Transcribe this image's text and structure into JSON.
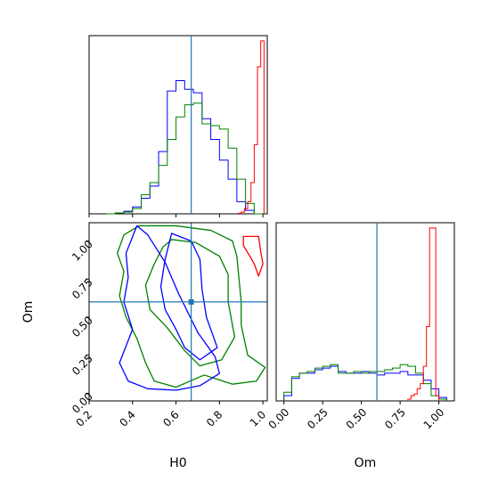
{
  "chart_data": [
    {
      "panel": "H0 marginal",
      "type": "histogram",
      "x_variable": "H0",
      "xlim": [
        0.2,
        1.02
      ],
      "truth": 0.67,
      "colors": {
        "blue": "#0000ff",
        "green": "#008000",
        "red": "#ff0000",
        "truth": "#1f77b4"
      },
      "series": [
        {
          "color": "blue",
          "edges": [
            0.28,
            0.32,
            0.36,
            0.4,
            0.44,
            0.48,
            0.52,
            0.56,
            0.6,
            0.64,
            0.68,
            0.72,
            0.76,
            0.8,
            0.84,
            0.88,
            0.92,
            0.96,
            1.0
          ],
          "values": [
            0,
            0.5,
            1.5,
            4,
            9,
            16,
            36,
            71,
            77,
            72,
            70,
            55,
            43,
            31,
            20,
            7,
            2,
            0
          ]
        },
        {
          "color": "green",
          "edges": [
            0.28,
            0.32,
            0.36,
            0.4,
            0.44,
            0.48,
            0.52,
            0.56,
            0.6,
            0.64,
            0.68,
            0.72,
            0.76,
            0.8,
            0.84,
            0.88,
            0.92,
            0.96,
            1.0
          ],
          "values": [
            0,
            0.5,
            1,
            3,
            11,
            18,
            28,
            43,
            56,
            63,
            64,
            52,
            51,
            49,
            38,
            20,
            6,
            0
          ]
        },
        {
          "color": "red",
          "edges": [
            0.885,
            0.9,
            0.915,
            0.93,
            0.945,
            0.96,
            0.975,
            0.99,
            1.005
          ],
          "values": [
            0.3,
            1,
            3,
            7,
            18,
            40,
            85,
            100
          ]
        }
      ]
    },
    {
      "panel": "Om vs H0 contours",
      "type": "contour",
      "xlabel": "H0",
      "ylabel": "Om",
      "xlim": [
        0.2,
        1.02
      ],
      "ylim": [
        -0.05,
        1.12
      ],
      "x_ticks": [
        "0.2",
        "0.4",
        "0.6",
        "0.8",
        "1.0"
      ],
      "y_ticks": [
        "0.00",
        "0.25",
        "0.50",
        "0.75",
        "1.00"
      ],
      "truth": {
        "H0": 0.67,
        "Om": 0.6
      },
      "contours": [
        {
          "color": "green",
          "points": [
            [
              0.43,
              1.1
            ],
            [
              0.6,
              1.1
            ],
            [
              0.76,
              1.07
            ],
            [
              0.86,
              1.0
            ],
            [
              0.88,
              0.9
            ],
            [
              0.89,
              0.75
            ],
            [
              0.9,
              0.6
            ],
            [
              0.9,
              0.45
            ],
            [
              0.93,
              0.25
            ],
            [
              1.01,
              0.17
            ],
            [
              0.97,
              0.08
            ],
            [
              0.86,
              0.06
            ],
            [
              0.73,
              0.12
            ],
            [
              0.68,
              0.09
            ],
            [
              0.6,
              0.04
            ],
            [
              0.5,
              0.08
            ],
            [
              0.46,
              0.2
            ],
            [
              0.42,
              0.36
            ],
            [
              0.37,
              0.5
            ],
            [
              0.34,
              0.64
            ],
            [
              0.36,
              0.8
            ],
            [
              0.33,
              0.92
            ],
            [
              0.36,
              1.04
            ],
            [
              0.43,
              1.1
            ]
          ]
        },
        {
          "color": "green",
          "points": [
            [
              0.58,
              1.01
            ],
            [
              0.69,
              0.99
            ],
            [
              0.8,
              0.9
            ],
            [
              0.84,
              0.78
            ],
            [
              0.84,
              0.6
            ],
            [
              0.87,
              0.37
            ],
            [
              0.81,
              0.22
            ],
            [
              0.71,
              0.18
            ],
            [
              0.64,
              0.28
            ],
            [
              0.56,
              0.43
            ],
            [
              0.48,
              0.55
            ],
            [
              0.46,
              0.71
            ],
            [
              0.5,
              0.85
            ],
            [
              0.54,
              0.96
            ],
            [
              0.58,
              1.01
            ]
          ]
        },
        {
          "color": "blue",
          "points": [
            [
              0.42,
              1.1
            ],
            [
              0.47,
              1.04
            ],
            [
              0.55,
              0.86
            ],
            [
              0.61,
              0.66
            ],
            [
              0.7,
              0.4
            ],
            [
              0.78,
              0.24
            ],
            [
              0.8,
              0.13
            ],
            [
              0.71,
              0.05
            ],
            [
              0.6,
              0.02
            ],
            [
              0.47,
              0.03
            ],
            [
              0.38,
              0.08
            ],
            [
              0.34,
              0.2
            ],
            [
              0.4,
              0.42
            ],
            [
              0.36,
              0.6
            ],
            [
              0.38,
              0.76
            ],
            [
              0.37,
              0.92
            ],
            [
              0.42,
              1.1
            ]
          ]
        },
        {
          "color": "blue",
          "points": [
            [
              0.58,
              1.05
            ],
            [
              0.67,
              1.0
            ],
            [
              0.71,
              0.88
            ],
            [
              0.72,
              0.68
            ],
            [
              0.74,
              0.5
            ],
            [
              0.79,
              0.3
            ],
            [
              0.71,
              0.22
            ],
            [
              0.64,
              0.3
            ],
            [
              0.6,
              0.42
            ],
            [
              0.55,
              0.55
            ],
            [
              0.53,
              0.7
            ],
            [
              0.55,
              0.88
            ],
            [
              0.58,
              1.05
            ]
          ]
        },
        {
          "color": "red",
          "points": [
            [
              0.91,
              1.03
            ],
            [
              0.98,
              1.03
            ],
            [
              0.99,
              0.93
            ],
            [
              1.0,
              0.85
            ],
            [
              0.98,
              0.77
            ],
            [
              0.96,
              0.85
            ],
            [
              0.94,
              0.9
            ],
            [
              0.91,
              0.97
            ],
            [
              0.91,
              1.03
            ]
          ]
        }
      ]
    },
    {
      "panel": "Om marginal",
      "type": "histogram",
      "xlabel": "Om",
      "xlim": [
        -0.05,
        1.1
      ],
      "x_ticks": [
        "0.00",
        "0.25",
        "0.50",
        "0.75",
        "1.00"
      ],
      "truth": 0.6,
      "series": [
        {
          "color": "blue",
          "edges": [
            0.0,
            0.05,
            0.1,
            0.15,
            0.2,
            0.25,
            0.3,
            0.35,
            0.4,
            0.45,
            0.5,
            0.55,
            0.6,
            0.65,
            0.7,
            0.75,
            0.8,
            0.85,
            0.9,
            0.95,
            1.0,
            1.05
          ],
          "values": [
            3,
            13,
            16,
            16,
            18,
            19,
            20,
            17,
            16,
            16,
            17,
            16,
            15,
            16,
            16,
            17,
            15,
            15,
            12,
            7,
            2
          ]
        },
        {
          "color": "green",
          "edges": [
            0.0,
            0.05,
            0.1,
            0.15,
            0.2,
            0.25,
            0.3,
            0.35,
            0.4,
            0.45,
            0.5,
            0.55,
            0.6,
            0.65,
            0.7,
            0.75,
            0.8,
            0.85,
            0.9,
            0.95,
            1.0,
            1.05
          ],
          "values": [
            5,
            14,
            16,
            17,
            19,
            20,
            21,
            16,
            16,
            17,
            16,
            17,
            17,
            18,
            19,
            21,
            20,
            16,
            10,
            3,
            1
          ]
        },
        {
          "color": "red",
          "edges": [
            0.8,
            0.82,
            0.84,
            0.86,
            0.88,
            0.9,
            0.92,
            0.94,
            0.96,
            0.98,
            1.0
          ],
          "values": [
            1,
            3,
            4,
            7,
            10,
            20,
            43,
            100,
            100,
            3
          ]
        }
      ]
    }
  ]
}
